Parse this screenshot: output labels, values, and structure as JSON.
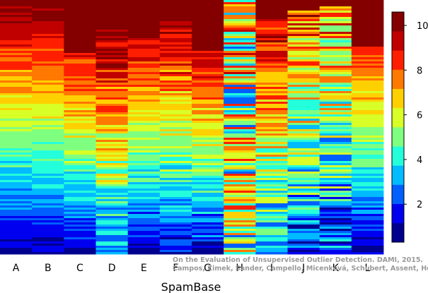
{
  "chart_data": {
    "type": "heatmap",
    "title": "",
    "xlabel": "SpamBase",
    "ylabel": "",
    "categories": [
      "A",
      "B",
      "C",
      "D",
      "E",
      "F",
      "G",
      "H",
      "I",
      "J",
      "K",
      "L"
    ],
    "colorbar": {
      "min": 0.3,
      "max": 10.6,
      "ticks": [
        2,
        4,
        6,
        8,
        10
      ],
      "tick_labels": [
        "2",
        "4",
        "6",
        "8",
        "10"
      ],
      "colormap": [
        "#00008f",
        "#0000f0",
        "#005fff",
        "#00bbff",
        "#24ffdb",
        "#7fff80",
        "#d8ff26",
        "#ffd000",
        "#ff7800",
        "#ff1f00",
        "#c00000",
        "#840000"
      ]
    },
    "grid": false,
    "legend": "colorbar-right",
    "n_rows": 120,
    "column_profiles": [
      {
        "name": "A",
        "sat_until": 0.0,
        "start": 10.3,
        "end": 0.8,
        "noise": 0.6,
        "seed": 11
      },
      {
        "name": "B",
        "sat_until": 0.03,
        "start": 10.0,
        "end": 0.9,
        "noise": 0.5,
        "seed": 23
      },
      {
        "name": "C",
        "sat_until": 0.21,
        "start": 9.0,
        "end": 1.1,
        "noise": 0.8,
        "seed": 37
      },
      {
        "name": "D",
        "sat_until": 0.11,
        "start": 10.2,
        "end": 2.5,
        "noise": 1.4,
        "seed": 41
      },
      {
        "name": "E",
        "sat_until": 0.15,
        "start": 9.5,
        "end": 1.2,
        "noise": 0.9,
        "seed": 53
      },
      {
        "name": "F",
        "sat_until": 0.08,
        "start": 10.0,
        "end": 1.3,
        "noise": 1.1,
        "seed": 67
      },
      {
        "name": "G",
        "sat_until": 0.2,
        "start": 9.3,
        "end": 1.5,
        "noise": 1.0,
        "seed": 71
      },
      {
        "name": "H",
        "sat_until": 0.0,
        "start": 6.0,
        "end": 5.5,
        "noise": 3.5,
        "seed": 83
      },
      {
        "name": "I",
        "sat_until": 0.07,
        "start": 9.8,
        "end": 2.8,
        "noise": 1.6,
        "seed": 97
      },
      {
        "name": "J",
        "sat_until": 0.04,
        "start": 8.0,
        "end": 2.2,
        "noise": 2.1,
        "seed": 101
      },
      {
        "name": "K",
        "sat_until": 0.02,
        "start": 7.5,
        "end": 2.0,
        "noise": 2.2,
        "seed": 113
      },
      {
        "name": "L",
        "sat_until": 0.18,
        "start": 8.5,
        "end": 1.0,
        "noise": 0.7,
        "seed": 127
      }
    ]
  },
  "credit": {
    "line1": "On the Evaluation of Unsupervised Outlier Detection. DAMI, 2015.",
    "line2": "Campos, Zimek, Sander, Campello, Micenková, Schubert, Assent, Houle"
  }
}
